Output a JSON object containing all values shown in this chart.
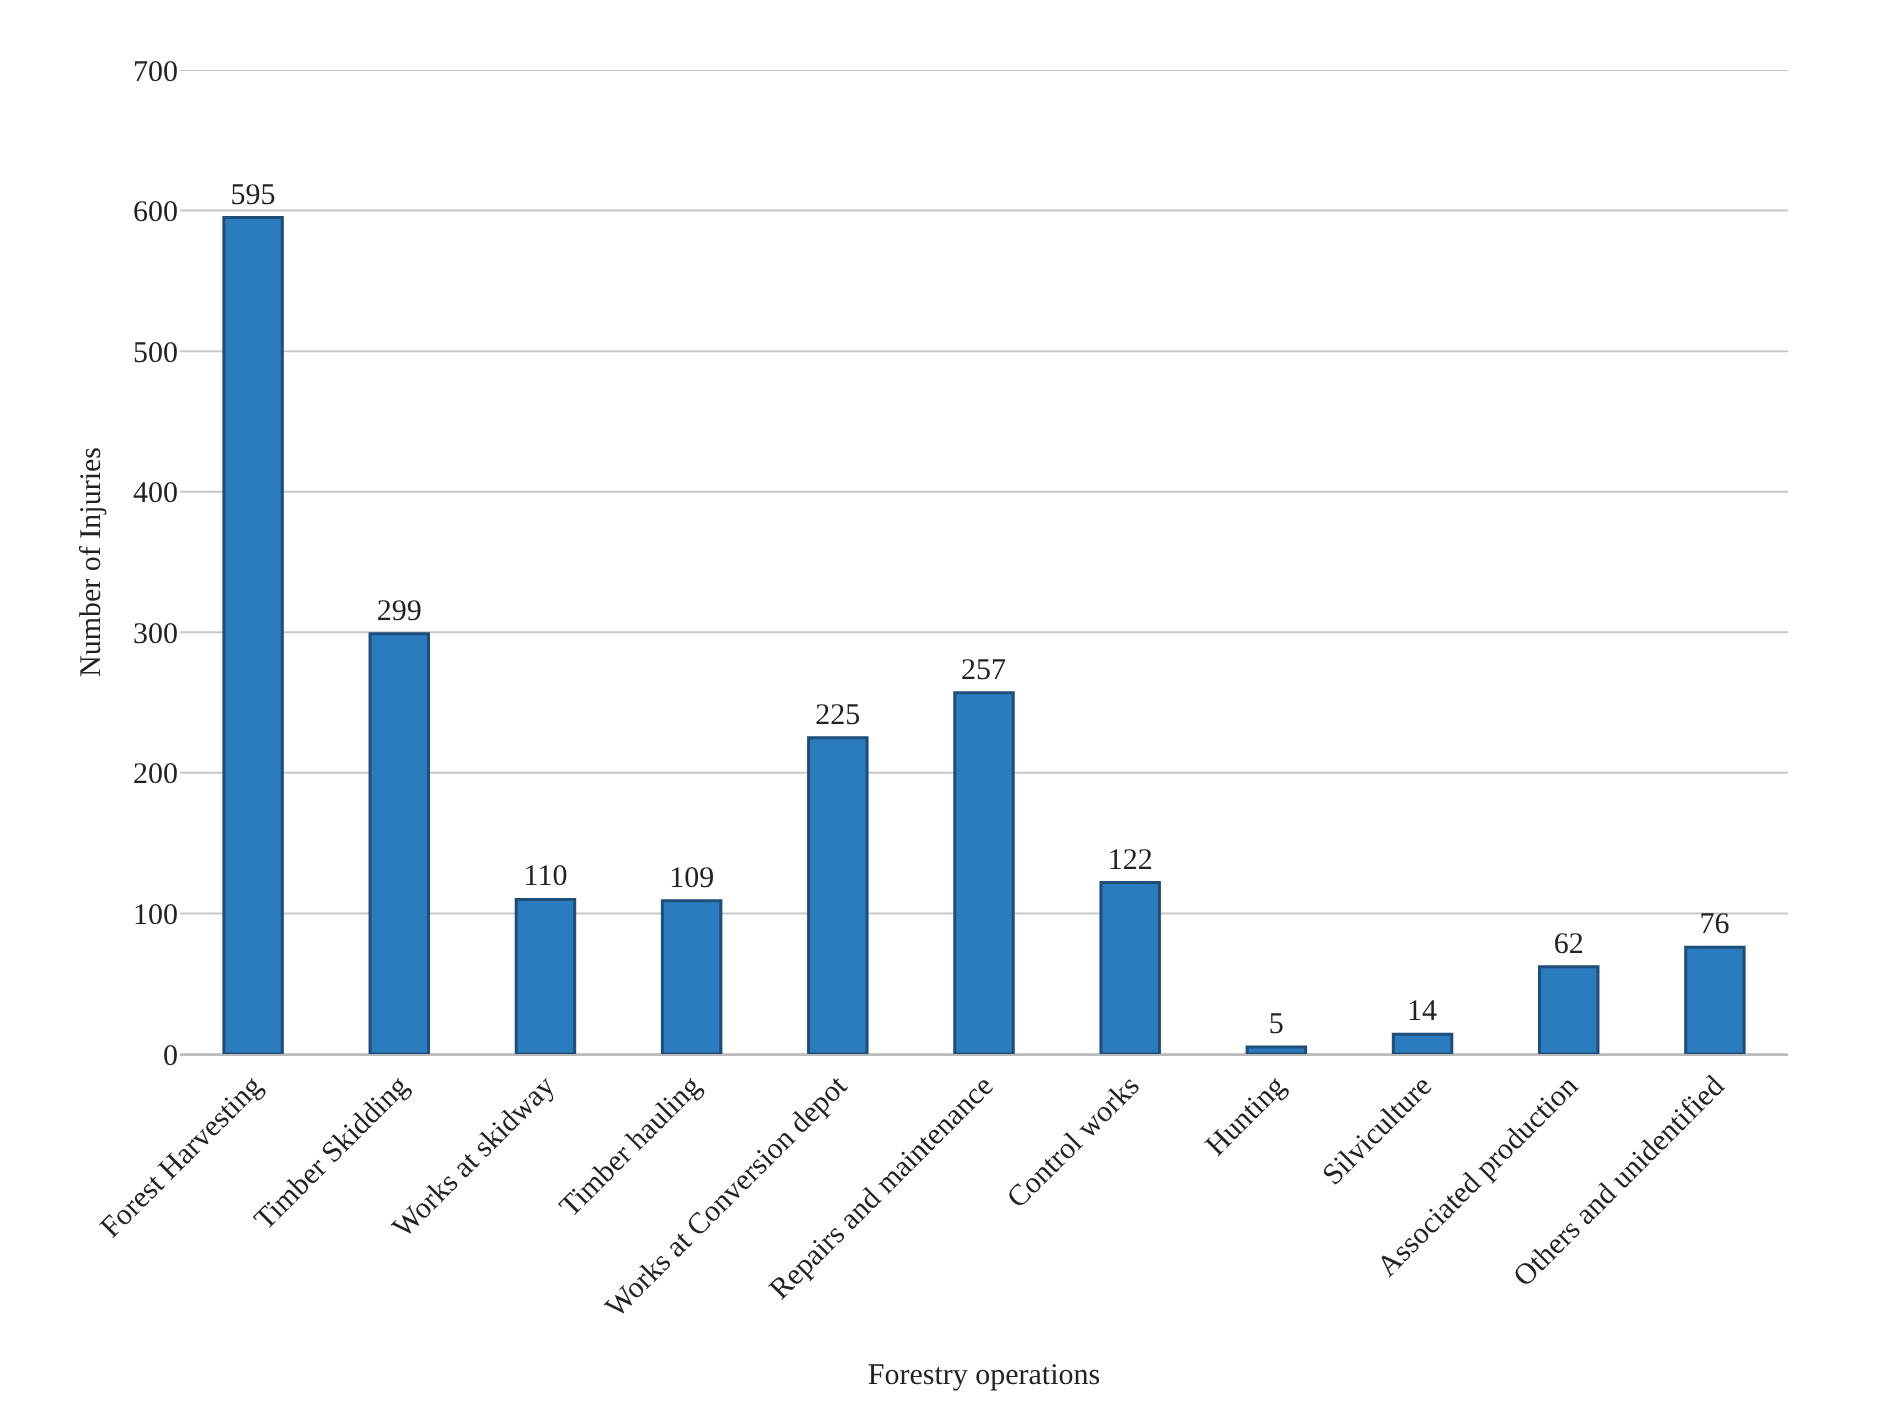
{
  "chart_data": {
    "type": "bar",
    "xlabel": "Forestry operations",
    "ylabel": "Number of Injuries",
    "categories": [
      "Forest Harvesting",
      "Timber Skidding",
      "Works at skidway",
      "Timber hauling",
      "Works at Conversion depot",
      "Repairs and maintenance",
      "Control works",
      "Hunting",
      "Silviculture",
      "Associated production",
      "Others and unidentified"
    ],
    "values": [
      595,
      299,
      110,
      109,
      225,
      257,
      122,
      5,
      14,
      62,
      76
    ],
    "color": "#2b7bbf",
    "ylim": [
      0,
      700
    ],
    "yticks": [
      0,
      100,
      200,
      300,
      400,
      500,
      600,
      700
    ],
    "grid": "y",
    "data_labels": true
  }
}
